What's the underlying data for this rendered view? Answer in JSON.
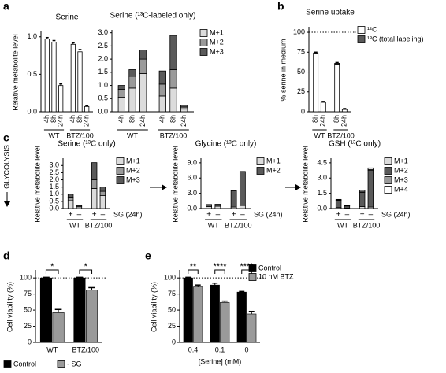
{
  "flow_label": "GLYCOLYSIS",
  "chart_data": [
    {
      "type": "bar",
      "panel": "a",
      "title": "Serine",
      "ylabel": "Relative metabolite level",
      "groups": [
        {
          "name": "WT",
          "categories": [
            "4h",
            "8h",
            "24h"
          ]
        },
        {
          "name": "BTZ/100",
          "categories": [
            "4h",
            "8h",
            "24h"
          ]
        }
      ],
      "series": [
        {
          "color": "#ffffff",
          "values": [
            0.97,
            0.93,
            0.35,
            0.9,
            0.8,
            0.07
          ],
          "errors": [
            0.02,
            0.02,
            0.02,
            0.02,
            0.03,
            0.01
          ]
        }
      ],
      "ylim": [
        0,
        1.05
      ],
      "yticks": [
        {
          "value": 0,
          "label": "0.0"
        },
        0.5,
        {
          "value": 1,
          "label": "1.0"
        }
      ]
    },
    {
      "type": "bar",
      "title": "Serine (¹³C-labeled only)",
      "legend": "right",
      "groups": [
        {
          "name": "WT",
          "categories": [
            "4h",
            "8h",
            "24h"
          ]
        },
        {
          "name": "BTZ/100",
          "categories": [
            "4h",
            "8h",
            "24h"
          ]
        }
      ],
      "series": [
        {
          "name": "M+1",
          "color": "#dcdcdc",
          "values": [
            0.55,
            0.9,
            1.45,
            0.6,
            0.9,
            0.1
          ]
        },
        {
          "name": "M+2",
          "color": "#9a9a9a",
          "values": [
            0.3,
            0.45,
            0.55,
            0.45,
            0.7,
            0.08
          ]
        },
        {
          "name": "M+3",
          "color": "#5a5a5a",
          "values": [
            0.15,
            0.25,
            0.35,
            0.5,
            1.3,
            0.07
          ]
        }
      ],
      "ylim": [
        0,
        3.05
      ],
      "yticks": [
        {
          "value": 0,
          "label": "0.0"
        },
        0.5,
        {
          "value": 1,
          "label": "1.0"
        },
        1.5,
        {
          "value": 2,
          "label": "2.0"
        },
        2.5,
        {
          "value": 3,
          "label": "3.0"
        }
      ]
    },
    {
      "type": "bar",
      "panel": "b",
      "title": "Serine uptake",
      "ylabel": "% serine in medium",
      "legend": "right",
      "groups": [
        {
          "name": "WT",
          "categories": [
            "8h",
            "24h"
          ]
        },
        {
          "name": "BTZ/100",
          "categories": [
            "8h",
            "24h"
          ]
        }
      ],
      "series": [
        {
          "name": "¹²C",
          "color": "#ffffff",
          "values": [
            73,
            12,
            60,
            3
          ],
          "errors": [
            2,
            1,
            2,
            1
          ]
        },
        {
          "name": "¹³C (total labeling)",
          "color": "#5a5a5a",
          "values": [
            1,
            0.5,
            1,
            0.3
          ]
        }
      ],
      "reference_line": 100,
      "ylim": [
        0,
        105
      ],
      "yticks": [
        0,
        25,
        50,
        75,
        100
      ]
    },
    {
      "type": "bar",
      "panel": "c",
      "title": "Serine (¹³C only)",
      "ylabel": "Relative metabolite level",
      "legend": "right",
      "x_label": "SG (24h)",
      "groups": [
        {
          "name": "WT",
          "categories": [
            "+",
            "–"
          ]
        },
        {
          "name": "BTZ/100",
          "categories": [
            "+",
            "–"
          ]
        }
      ],
      "series": [
        {
          "name": "M+1",
          "color": "#dcdcdc",
          "values": [
            0.55,
            0.12,
            1.4,
            0.9
          ]
        },
        {
          "name": "M+2",
          "color": "#9a9a9a",
          "values": [
            0.25,
            0.06,
            0.6,
            0.3
          ]
        },
        {
          "name": "M+3",
          "color": "#5a5a5a",
          "values": [
            0.2,
            0.07,
            1.2,
            0.3
          ]
        }
      ],
      "ylim": [
        0,
        3.4
      ],
      "yticks": [
        {
          "value": 0,
          "label": "0.0"
        },
        0.5,
        {
          "value": 1,
          "label": "1.0"
        },
        1.5,
        {
          "value": 2,
          "label": "2.0"
        },
        2.5,
        {
          "value": 3,
          "label": "3.0"
        }
      ]
    },
    {
      "type": "bar",
      "title": "Glycine (¹³C only)",
      "ylabel": "Relative metabolite level",
      "legend": "right",
      "x_label": "SG (24h)",
      "groups": [
        {
          "name": "WT",
          "categories": [
            "+",
            "–"
          ]
        },
        {
          "name": "BTZ/100",
          "categories": [
            "+",
            "–"
          ]
        }
      ],
      "series": [
        {
          "name": "M+1",
          "color": "#dcdcdc",
          "values": [
            0.4,
            0.45,
            0.3,
            0.6
          ]
        },
        {
          "name": "M+2",
          "color": "#5a5a5a",
          "values": [
            0.4,
            0.4,
            3.2,
            6.7
          ]
        }
      ],
      "ylim": [
        0,
        9.6
      ],
      "yticks": [
        {
          "value": 0,
          "label": "0.0"
        },
        {
          "value": 3,
          "label": "3.0"
        },
        {
          "value": 6,
          "label": "6.0"
        },
        {
          "value": 9,
          "label": "9.0"
        }
      ]
    },
    {
      "type": "bar",
      "title": "GSH (¹³C only)",
      "ylabel": "Relative metabolite level",
      "legend": "right",
      "x_label": "SG (24h)",
      "groups": [
        {
          "name": "WT",
          "categories": [
            "+",
            "–"
          ]
        },
        {
          "name": "BTZ/100",
          "categories": [
            "+",
            "–"
          ]
        }
      ],
      "series": [
        {
          "name": "M+1",
          "color": "#dcdcdc",
          "values": [
            0.1,
            0.05,
            0.2,
            0.15
          ]
        },
        {
          "name": "M+2",
          "color": "#5a5a5a",
          "values": [
            0.7,
            0.2,
            1.4,
            3.6
          ]
        },
        {
          "name": "M+3",
          "color": "#9a9a9a",
          "values": [
            0.05,
            0.02,
            0.1,
            0.1
          ]
        },
        {
          "name": "M+4",
          "color": "#ffffff",
          "values": [
            0.05,
            0.03,
            0.1,
            0.15
          ]
        }
      ],
      "ylim": [
        0,
        4.8
      ],
      "yticks": [
        {
          "value": 0,
          "label": "0.0"
        },
        1.5,
        {
          "value": 3,
          "label": "3.0"
        },
        4.5
      ]
    },
    {
      "type": "bar",
      "panel": "d",
      "ylabel": "Cell viability (%)",
      "legend": "bottom",
      "categories": [
        "WT",
        "BTZ/100"
      ],
      "series": [
        {
          "name": "Control",
          "color": "#000000",
          "values": [
            100,
            100
          ],
          "errors": [
            1,
            1
          ]
        },
        {
          "name": "- SG",
          "color": "#9a9a9a",
          "values": [
            46,
            81
          ],
          "errors": [
            5,
            4
          ]
        }
      ],
      "significance": [
        "*",
        "*"
      ],
      "reference_line": 100,
      "ylim": [
        0,
        110
      ],
      "yticks": [
        0,
        25,
        50,
        75,
        100
      ]
    },
    {
      "type": "bar",
      "panel": "e",
      "ylabel": "Cell viability (%)",
      "xlabel": "[Serine] (mM)",
      "legend": "inside",
      "categories": [
        "0.4",
        "0.1",
        "0"
      ],
      "series": [
        {
          "name": "Control",
          "color": "#000000",
          "values": [
            100,
            89,
            78
          ],
          "errors": [
            1,
            3,
            1
          ]
        },
        {
          "name": "10 nM BTZ",
          "color": "#9a9a9a",
          "values": [
            86,
            62,
            44
          ],
          "errors": [
            3,
            2,
            4
          ]
        }
      ],
      "significance": [
        "**",
        "****",
        "****"
      ],
      "reference_line": 100,
      "ylim": [
        0,
        110
      ],
      "yticks": [
        0,
        25,
        50,
        75,
        100
      ]
    }
  ]
}
